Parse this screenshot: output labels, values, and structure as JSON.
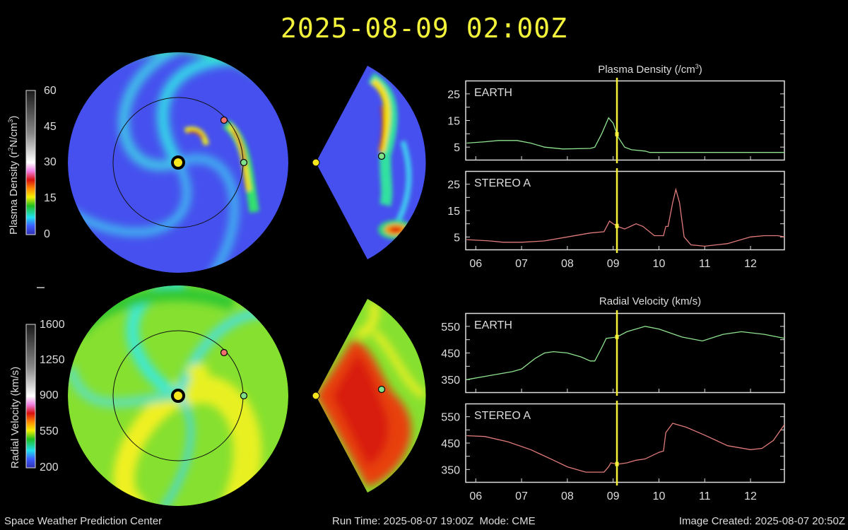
{
  "header": {
    "timestamp": "2025-08-09 02:00Z"
  },
  "maps": {
    "density_colorbar": {
      "title": "Plasma Density (r",
      "title_sup": "2",
      "title_mid": "N/cm",
      "title_sup2": "3",
      "title_end": ")",
      "ticks": [
        "60",
        "45",
        "30",
        "15",
        "0"
      ]
    },
    "velocity_colorbar": {
      "title": "Radial Velocity (km/s)",
      "ticks": [
        "1600",
        "1250",
        "900",
        "550",
        "200"
      ]
    },
    "colors": {
      "sun": "#f5e61e",
      "earth": "#7fe08a",
      "stereo_a": "#f07070"
    }
  },
  "chart_data": [
    {
      "type": "line",
      "title": "Plasma Density (/cm",
      "title_sup": "3",
      "title_end": ")",
      "xlim": [
        5.78,
        12.74
      ],
      "ylim": [
        0,
        30
      ],
      "xticks": [
        6,
        7,
        8,
        9,
        10,
        11,
        12
      ],
      "xtick_labels": [
        "06",
        "07",
        "08",
        "09",
        "10",
        "11",
        "12"
      ],
      "yticks_labeled": [
        5,
        15,
        25
      ],
      "yticks_minor": [
        10,
        20
      ],
      "current_time": 9.083,
      "panels": [
        {
          "name": "EARTH",
          "color": "#8fe38f",
          "x": [
            5.8,
            6.2,
            6.5,
            6.9,
            7.2,
            7.5,
            7.9,
            8.5,
            8.6,
            8.75,
            8.9,
            9.0,
            9.1,
            9.25,
            9.4,
            9.7,
            9.8,
            10.5,
            11.0,
            12.0,
            12.74
          ],
          "y": [
            6.5,
            7,
            7.5,
            7.5,
            6.5,
            5,
            4.3,
            4.5,
            5,
            10,
            16,
            14,
            9,
            5,
            4,
            3.5,
            3,
            3,
            3,
            3,
            3
          ]
        },
        {
          "name": "STEREO A",
          "color": "#e07a7a",
          "x": [
            5.8,
            6.3,
            6.6,
            7.0,
            7.5,
            8.0,
            8.5,
            8.8,
            8.92,
            9.0,
            9.1,
            9.25,
            9.5,
            9.65,
            9.9,
            10.1,
            10.15,
            10.2,
            10.3,
            10.37,
            10.45,
            10.55,
            10.7,
            11.0,
            11.5,
            12.0,
            12.3,
            12.6,
            12.74
          ],
          "y": [
            4,
            3.5,
            3,
            3,
            3.5,
            5,
            6.5,
            7,
            11,
            10,
            9,
            8,
            10,
            9,
            5.5,
            5.5,
            9,
            9,
            18,
            23,
            18,
            5,
            2,
            1.5,
            2.5,
            5,
            5.5,
            5.5,
            5
          ]
        }
      ]
    },
    {
      "type": "line",
      "title": "Radial Velocity (km/s)",
      "xlim": [
        5.78,
        12.74
      ],
      "ylim": [
        300,
        600
      ],
      "xticks": [
        6,
        7,
        8,
        9,
        10,
        11,
        12
      ],
      "xtick_labels": [
        "06",
        "07",
        "08",
        "09",
        "10",
        "11",
        "12"
      ],
      "yticks_labeled": [
        350,
        450,
        550
      ],
      "yticks_minor": [
        400,
        500
      ],
      "current_time": 9.083,
      "panels": [
        {
          "name": "EARTH",
          "color": "#8fe38f",
          "x": [
            5.8,
            6.3,
            6.8,
            7.0,
            7.3,
            7.5,
            7.7,
            8.0,
            8.3,
            8.5,
            8.6,
            8.75,
            8.85,
            9.08,
            9.3,
            9.7,
            10.0,
            10.5,
            10.95,
            11.4,
            11.8,
            12.3,
            12.74
          ],
          "y": [
            350,
            365,
            380,
            390,
            430,
            450,
            455,
            450,
            435,
            420,
            420,
            470,
            505,
            510,
            530,
            550,
            540,
            510,
            495,
            520,
            530,
            520,
            505
          ]
        },
        {
          "name": "STEREO A",
          "color": "#e07a7a",
          "x": [
            5.8,
            6.2,
            6.7,
            7.2,
            7.7,
            8.0,
            8.4,
            8.8,
            8.9,
            8.95,
            9.1,
            9.3,
            9.5,
            9.7,
            10.0,
            10.1,
            10.15,
            10.3,
            10.6,
            11.0,
            11.5,
            12.0,
            12.25,
            12.5,
            12.74
          ],
          "y": [
            478,
            475,
            455,
            425,
            385,
            360,
            340,
            340,
            360,
            375,
            370,
            375,
            385,
            390,
            415,
            420,
            490,
            525,
            510,
            480,
            440,
            425,
            430,
            460,
            520
          ]
        }
      ]
    }
  ],
  "footer": {
    "left": "Space Weather Prediction Center",
    "center": "Run Time: 2025-08-07 19:00Z  Mode: CME",
    "right": "Image Created: 2025-08-07 20:50Z"
  }
}
